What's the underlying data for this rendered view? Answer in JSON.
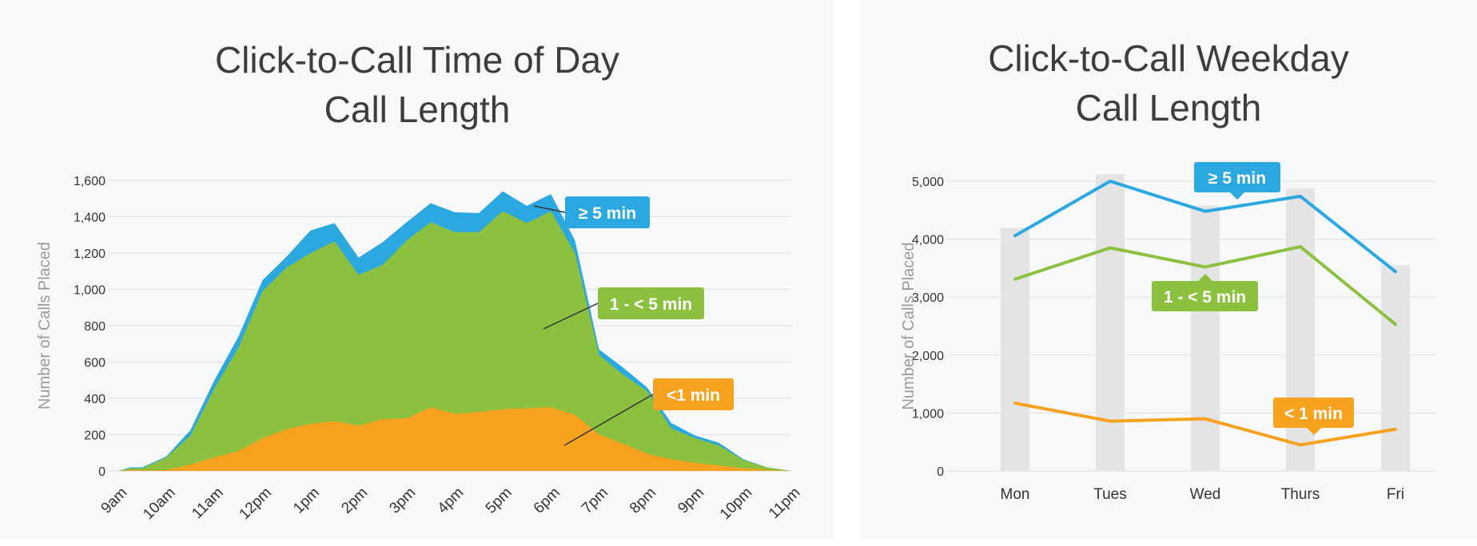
{
  "charts": [
    {
      "title_line1": "Click-to-Call Time of Day",
      "title_line2": "Call Length"
    },
    {
      "title_line1": "Click-to-Call Weekday",
      "title_line2": "Call Length"
    }
  ],
  "colors": {
    "long": "#2ba8e0",
    "mid": "#8cc03f",
    "short": "#f7a21e",
    "bar": "#e4e4e4",
    "grid": "#e3e3e3",
    "text": "#333333",
    "axis_label": "#9a9a9a"
  },
  "chart_data": [
    {
      "type": "area",
      "stacked": true,
      "title": "Click-to-Call Time of Day Call Length",
      "xlabel": "",
      "ylabel": "Number of Calls Placed",
      "ylim": [
        0,
        1600
      ],
      "yticks": [
        0,
        200,
        400,
        600,
        800,
        1000,
        1200,
        1400,
        1600
      ],
      "ytick_labels": [
        "0",
        "200",
        "400",
        "600",
        "800",
        "1,000",
        "1,200",
        "1,400",
        "1,600"
      ],
      "xtick_labels": [
        "9am",
        "10am",
        "11am",
        "12pm",
        "1pm",
        "2pm",
        "3pm",
        "4pm",
        "5pm",
        "6pm",
        "7pm",
        "8pm",
        "9pm",
        "10pm",
        "11pm"
      ],
      "x": [
        9.0,
        9.25,
        9.5,
        10.0,
        10.5,
        11.0,
        11.5,
        12.0,
        12.5,
        13.0,
        13.5,
        14.0,
        14.5,
        15.0,
        15.5,
        16.0,
        16.5,
        17.0,
        17.5,
        18.0,
        18.5,
        19.0,
        19.5,
        20.0,
        20.5,
        21.0,
        21.5,
        22.0,
        22.5,
        23.0
      ],
      "series": [
        {
          "name": "<1 min",
          "label": "<1 min",
          "color_key": "short",
          "values": [
            0,
            5,
            5,
            5,
            35,
            75,
            110,
            180,
            230,
            260,
            275,
            250,
            285,
            290,
            350,
            315,
            325,
            340,
            345,
            350,
            310,
            200,
            150,
            95,
            65,
            45,
            30,
            15,
            5,
            0
          ]
        },
        {
          "name": "1-<5 min",
          "label": "1 - < 5 min",
          "color_key": "mid",
          "values": [
            0,
            10,
            10,
            70,
            160,
            380,
            570,
            810,
            890,
            940,
            990,
            830,
            850,
            980,
            1020,
            1000,
            990,
            1090,
            1020,
            1080,
            890,
            440,
            380,
            345,
            170,
            135,
            110,
            45,
            15,
            0
          ]
        },
        {
          "name": "≥5 min",
          "label": "≥ 5 min",
          "color_key": "long",
          "values": [
            0,
            5,
            5,
            5,
            30,
            45,
            60,
            60,
            60,
            125,
            100,
            95,
            125,
            100,
            105,
            110,
            105,
            110,
            95,
            95,
            70,
            30,
            40,
            20,
            30,
            15,
            15,
            5,
            0,
            0
          ]
        }
      ]
    },
    {
      "type": "line",
      "title": "Click-to-Call Weekday Call Length",
      "xlabel": "",
      "ylabel": "Number of Calls Placed",
      "ylim": [
        0,
        5000
      ],
      "yticks": [
        0,
        1000,
        2000,
        3000,
        4000,
        5000
      ],
      "ytick_labels": [
        "0",
        "1,000",
        "2,000",
        "3,000",
        "4,000",
        "5,000"
      ],
      "categories": [
        "Mon",
        "Tues",
        "Wed",
        "Thurs",
        "Fri"
      ],
      "bars": [
        4200,
        5120,
        4580,
        4880,
        3550
      ],
      "series": [
        {
          "name": "≥5 min",
          "label": "≥ 5 min",
          "color_key": "long",
          "values": [
            4060,
            5000,
            4480,
            4740,
            3440
          ]
        },
        {
          "name": "1-<5 min",
          "label": "1 - < 5 min",
          "color_key": "mid",
          "values": [
            3310,
            3850,
            3520,
            3870,
            2530
          ]
        },
        {
          "name": "<1 min",
          "label": "< 1 min",
          "color_key": "short",
          "values": [
            1170,
            860,
            900,
            450,
            720
          ]
        }
      ]
    }
  ]
}
